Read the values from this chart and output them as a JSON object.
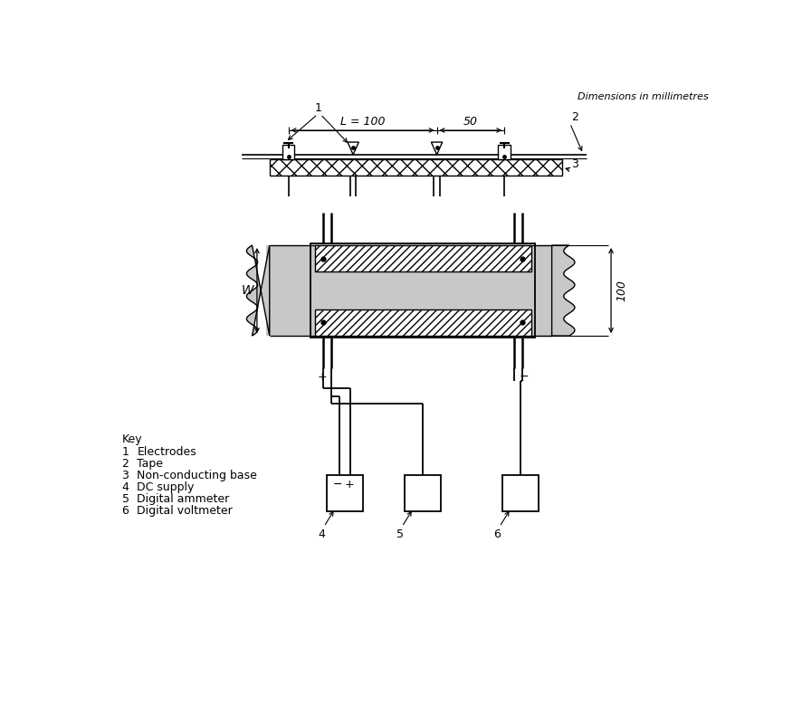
{
  "dim_note": "Dimensions in millimetres",
  "background_color": "#ffffff",
  "line_color": "#000000",
  "tape_color": "#c8c8c8",
  "key_title": "Key",
  "key_items": [
    [
      "1",
      "Electrodes"
    ],
    [
      "2",
      "Tape"
    ],
    [
      "3",
      "Non-conducting base"
    ],
    [
      "4",
      "DC supply"
    ],
    [
      "5",
      "Digital ammeter"
    ],
    [
      "6",
      "Digital voltmeter"
    ]
  ],
  "dim_L": "L = 100",
  "dim_50": "50",
  "dim_100": "100",
  "dim_W": "W",
  "label1": "1",
  "label2": "2",
  "label3": "3",
  "label4": "4",
  "label5": "5",
  "label6": "6",
  "plus": "+",
  "minus": "−"
}
